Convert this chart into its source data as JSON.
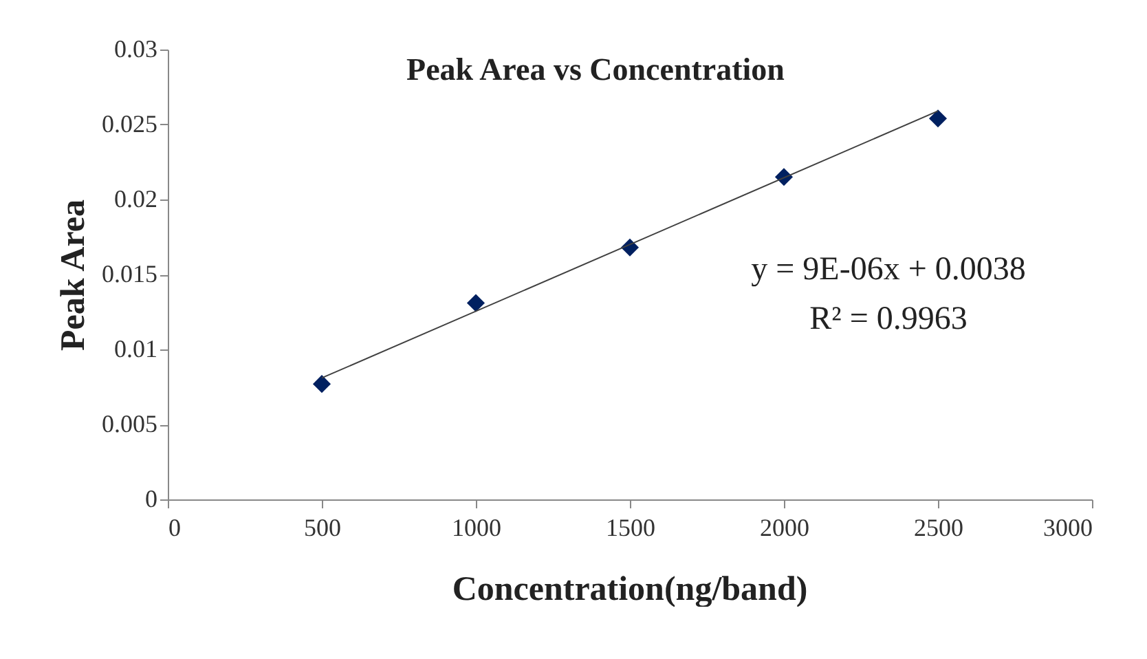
{
  "chart_data": {
    "type": "scatter",
    "title": "Peak Area vs Concentration",
    "xlabel": "Concentration(ng/band)",
    "ylabel": "Peak Area",
    "x": [
      500,
      1000,
      1500,
      2000,
      2500
    ],
    "series": [
      {
        "color": "#002060",
        "values": [
          0.0077,
          0.0131,
          0.0168,
          0.0215,
          0.0254
        ]
      },
      {
        "type": "line",
        "marker": "none",
        "color": "#404040",
        "x": [
          500,
          2500
        ],
        "values": [
          0.0081,
          0.0259
        ]
      }
    ],
    "xlim": [
      0,
      3000
    ],
    "xticks": [
      0,
      500,
      1000,
      1500,
      2000,
      2500,
      3000
    ],
    "ylim": [
      0,
      0.03
    ],
    "yticks": [
      0,
      0.005,
      0.01,
      0.015,
      0.02,
      0.025,
      0.03
    ],
    "marker": "diamond",
    "grid": false,
    "annotations": [
      "y = 9E-06x + 0.0038",
      "R² = 0.9963"
    ]
  }
}
